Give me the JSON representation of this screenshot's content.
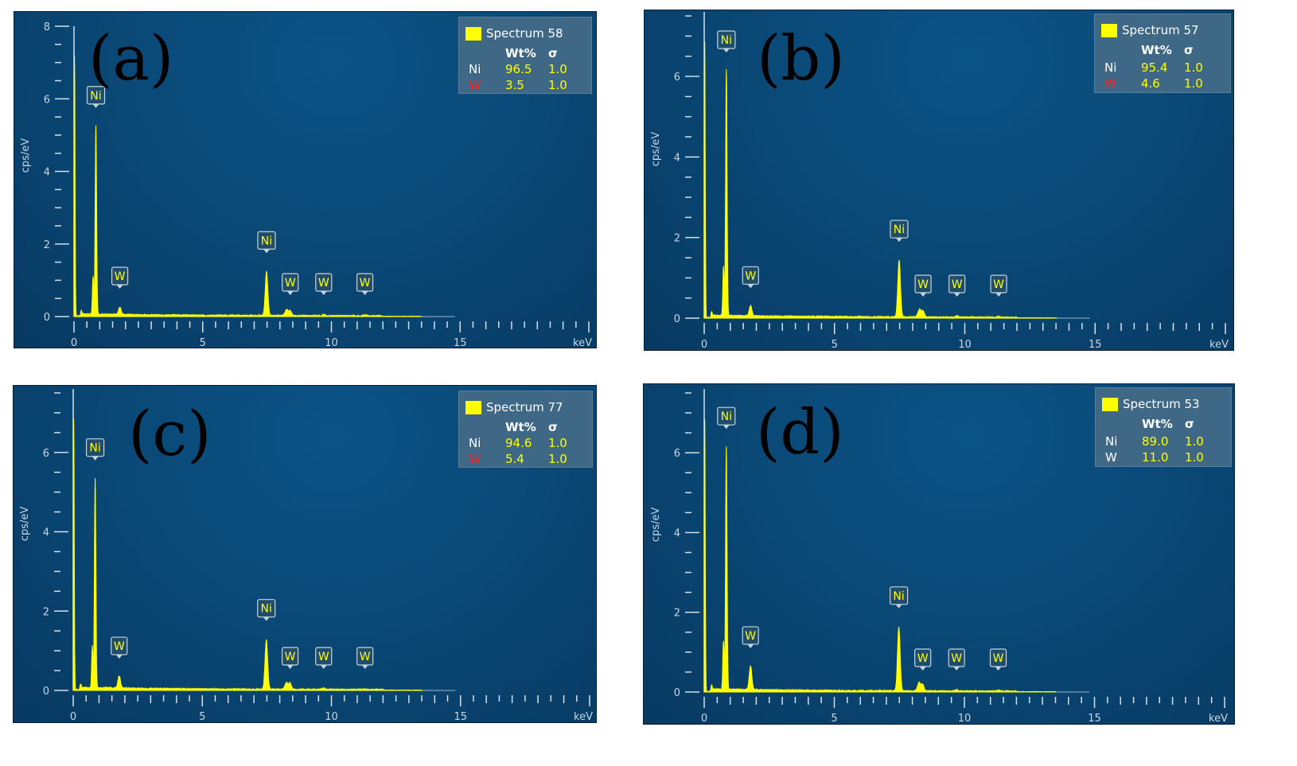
{
  "chart_data": [
    {
      "type": "line",
      "panel_label": "(a)",
      "xlabel": "keV",
      "ylabel": "cps/eV",
      "xlim": [
        0,
        20
      ],
      "ylim": [
        0,
        8
      ],
      "x_ticks": [
        0,
        5,
        10,
        15
      ],
      "y_ticks": [
        0,
        2,
        4,
        6,
        8
      ],
      "y_tick_labels": [
        "0",
        "2",
        "4",
        "6",
        "8"
      ],
      "spectrum_name": "Spectrum 58",
      "composition": [
        {
          "element": "Ni",
          "wt": "96.5",
          "sigma": "1.0",
          "color": "#ffffff"
        },
        {
          "element": "W",
          "wt": "3.5",
          "sigma": "1.0",
          "color": "#ff2020"
        }
      ],
      "peaks": [
        {
          "label": "Ni",
          "x": 0.85,
          "y": 5.2
        },
        {
          "label": "W",
          "x": 1.78,
          "y": 0.2
        },
        {
          "label": "Ni",
          "x": 7.48,
          "y": 1.2
        },
        {
          "label": "W",
          "x": 8.4,
          "y": 0.12
        },
        {
          "label": "W",
          "x": 9.7,
          "y": 0.03
        },
        {
          "label": "W",
          "x": 11.3,
          "y": 0.02
        }
      ]
    },
    {
      "type": "line",
      "panel_label": "(b)",
      "xlabel": "keV",
      "ylabel": "cps/eV",
      "xlim": [
        0,
        20
      ],
      "ylim": [
        0,
        8
      ],
      "x_ticks": [
        0,
        5,
        10,
        15
      ],
      "y_ticks": [
        0,
        2,
        4,
        6
      ],
      "y_tick_labels": [
        "0",
        "2",
        "4",
        "6"
      ],
      "spectrum_name": "Spectrum 57",
      "composition": [
        {
          "element": "Ni",
          "wt": "95.4",
          "sigma": "1.0",
          "color": "#ffffff"
        },
        {
          "element": "W",
          "wt": "4.6",
          "sigma": "1.0",
          "color": "#ff2020"
        }
      ],
      "peaks": [
        {
          "label": "Ni",
          "x": 0.85,
          "y": 6.1
        },
        {
          "label": "W",
          "x": 1.78,
          "y": 0.25
        },
        {
          "label": "Ni",
          "x": 7.48,
          "y": 1.4
        },
        {
          "label": "W",
          "x": 8.4,
          "y": 0.15
        },
        {
          "label": "W",
          "x": 9.7,
          "y": 0.03
        },
        {
          "label": "W",
          "x": 11.3,
          "y": 0.02
        }
      ]
    },
    {
      "type": "line",
      "panel_label": "(c)",
      "xlabel": "keV",
      "ylabel": "cps/eV",
      "xlim": [
        0,
        20
      ],
      "ylim": [
        0,
        8
      ],
      "x_ticks": [
        0,
        5,
        10,
        15
      ],
      "y_ticks": [
        0,
        2,
        4,
        6
      ],
      "y_tick_labels": [
        "0",
        "2",
        "4",
        "6"
      ],
      "spectrum_name": "Spectrum 77",
      "composition": [
        {
          "element": "Ni",
          "wt": "94.6",
          "sigma": "1.0",
          "color": "#ffffff"
        },
        {
          "element": "W",
          "wt": "5.4",
          "sigma": "1.0",
          "color": "#ff2020"
        }
      ],
      "peaks": [
        {
          "label": "Ni",
          "x": 0.85,
          "y": 5.3
        },
        {
          "label": "W",
          "x": 1.78,
          "y": 0.3
        },
        {
          "label": "Ni",
          "x": 7.48,
          "y": 1.25
        },
        {
          "label": "W",
          "x": 8.4,
          "y": 0.15
        },
        {
          "label": "W",
          "x": 9.7,
          "y": 0.03
        },
        {
          "label": "W",
          "x": 11.3,
          "y": 0.02
        }
      ]
    },
    {
      "type": "line",
      "panel_label": "(d)",
      "xlabel": "keV",
      "ylabel": "cps/eV",
      "xlim": [
        0,
        20
      ],
      "ylim": [
        0,
        8
      ],
      "x_ticks": [
        0,
        5,
        10,
        15
      ],
      "y_ticks": [
        0,
        2,
        4,
        6
      ],
      "y_tick_labels": [
        "0",
        "2",
        "4",
        "6"
      ],
      "spectrum_name": "Spectrum 53",
      "composition": [
        {
          "element": "Ni",
          "wt": "89.0",
          "sigma": "1.0",
          "color": "#ffffff"
        },
        {
          "element": "W",
          "wt": "11.0",
          "sigma": "1.0",
          "color": "#ffffff"
        }
      ],
      "peaks": [
        {
          "label": "Ni",
          "x": 0.85,
          "y": 6.1
        },
        {
          "label": "W",
          "x": 1.78,
          "y": 0.6
        },
        {
          "label": "Ni",
          "x": 7.48,
          "y": 1.6
        },
        {
          "label": "W",
          "x": 8.4,
          "y": 0.15
        },
        {
          "label": "W",
          "x": 9.7,
          "y": 0.03
        },
        {
          "label": "W",
          "x": 11.3,
          "y": 0.02
        }
      ]
    }
  ]
}
